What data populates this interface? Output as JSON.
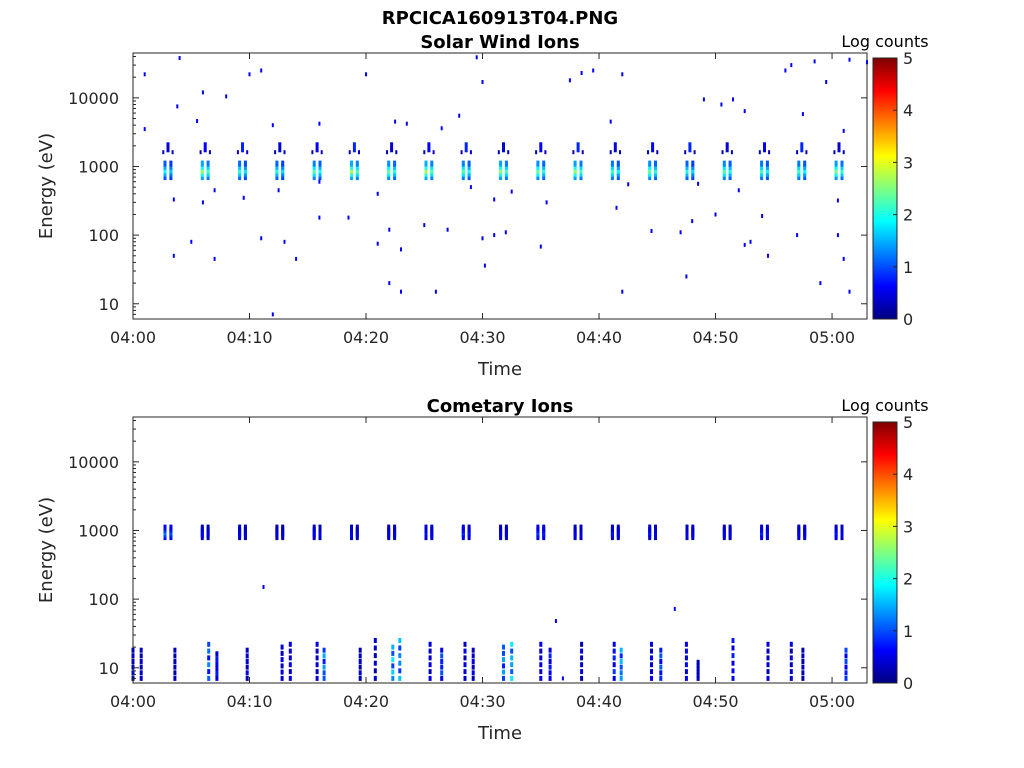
{
  "figure_title": "RPCICA160913T04.PNG",
  "chart_data": [
    {
      "type": "heatmap",
      "title": "Solar Wind Ions",
      "xlabel": "Time",
      "ylabel": "Energy (eV)",
      "x_ticks": [
        "04:00",
        "04:10",
        "04:20",
        "04:30",
        "04:40",
        "04:50",
        "05:00"
      ],
      "xlim_minutes": [
        0,
        63
      ],
      "y_ticks": [
        "10",
        "100",
        "1000",
        "10000"
      ],
      "yscale": "log",
      "ylim": [
        6,
        45000
      ],
      "colorbar": {
        "label": "Log counts",
        "ticks": [
          "0",
          "1",
          "2",
          "3",
          "4",
          "5"
        ],
        "range": [
          0,
          5
        ],
        "colormap": "jet"
      },
      "bursts": [
        {
          "t": 3.0,
          "peak": 1.9
        },
        {
          "t": 6.2,
          "peak": 2.6
        },
        {
          "t": 9.4,
          "peak": 2.1
        },
        {
          "t": 12.6,
          "peak": 2.0
        },
        {
          "t": 15.8,
          "peak": 2.3
        },
        {
          "t": 19.0,
          "peak": 2.7
        },
        {
          "t": 22.2,
          "peak": 2.4
        },
        {
          "t": 25.4,
          "peak": 2.7
        },
        {
          "t": 28.6,
          "peak": 2.3
        },
        {
          "t": 31.8,
          "peak": 2.6
        },
        {
          "t": 35.0,
          "peak": 2.4
        },
        {
          "t": 38.2,
          "peak": 2.6
        },
        {
          "t": 41.4,
          "peak": 2.2
        },
        {
          "t": 44.6,
          "peak": 2.4
        },
        {
          "t": 47.8,
          "peak": 2.0
        },
        {
          "t": 51.0,
          "peak": 2.3
        },
        {
          "t": 54.2,
          "peak": 2.2
        },
        {
          "t": 57.4,
          "peak": 2.2
        },
        {
          "t": 60.6,
          "peak": 2.5
        }
      ],
      "burst_energy_range_eV": [
        700,
        1100
      ],
      "secondary_energy_eV": 1900,
      "scatter": [
        [
          1,
          22000
        ],
        [
          4,
          38000
        ],
        [
          6,
          12000
        ],
        [
          8,
          10500
        ],
        [
          10,
          22000
        ],
        [
          11,
          25000
        ],
        [
          20,
          22000
        ],
        [
          29.5,
          39000
        ],
        [
          30,
          17000
        ],
        [
          37.5,
          18000
        ],
        [
          38.5,
          23000
        ],
        [
          39.5,
          25000
        ],
        [
          42,
          22000
        ],
        [
          51.5,
          9500
        ],
        [
          56,
          25000
        ],
        [
          56.5,
          30000
        ],
        [
          58.5,
          34000
        ],
        [
          59.5,
          17000
        ],
        [
          61.5,
          36000
        ],
        [
          63,
          33000
        ],
        [
          1,
          3500
        ],
        [
          3.8,
          7500
        ],
        [
          5.5,
          4600
        ],
        [
          12,
          4000
        ],
        [
          16,
          4200
        ],
        [
          22.5,
          4500
        ],
        [
          23.5,
          4200
        ],
        [
          26.5,
          3600
        ],
        [
          28,
          5500
        ],
        [
          41,
          4500
        ],
        [
          49,
          9500
        ],
        [
          50.5,
          8000
        ],
        [
          52.5,
          6400
        ],
        [
          57.5,
          5800
        ],
        [
          61,
          3300
        ],
        [
          3.5,
          330
        ],
        [
          6,
          300
        ],
        [
          7,
          450
        ],
        [
          9.5,
          350
        ],
        [
          12.5,
          450
        ],
        [
          16,
          600
        ],
        [
          21,
          400
        ],
        [
          29,
          500
        ],
        [
          31,
          330
        ],
        [
          32.5,
          430
        ],
        [
          35.5,
          300
        ],
        [
          41.5,
          250
        ],
        [
          42.5,
          550
        ],
        [
          48.5,
          560
        ],
        [
          50,
          200
        ],
        [
          52,
          450
        ],
        [
          54,
          190
        ],
        [
          60.5,
          320
        ],
        [
          16,
          180
        ],
        [
          18.5,
          180
        ],
        [
          22,
          120
        ],
        [
          25,
          140
        ],
        [
          27,
          120
        ],
        [
          31,
          100
        ],
        [
          32,
          110
        ],
        [
          44.5,
          115
        ],
        [
          47,
          110
        ],
        [
          48,
          160
        ],
        [
          53,
          80
        ],
        [
          57,
          100
        ],
        [
          60.5,
          100
        ],
        [
          3.5,
          50
        ],
        [
          5,
          80
        ],
        [
          7,
          45
        ],
        [
          11,
          90
        ],
        [
          13,
          80
        ],
        [
          14,
          45
        ],
        [
          21,
          75
        ],
        [
          23,
          62
        ],
        [
          30,
          90
        ],
        [
          35,
          68
        ],
        [
          52.5,
          72
        ],
        [
          54.5,
          50
        ],
        [
          61,
          45
        ],
        [
          12,
          7
        ],
        [
          30.2,
          36
        ],
        [
          22,
          20
        ],
        [
          23,
          15
        ],
        [
          26,
          15
        ],
        [
          42,
          15
        ],
        [
          47.5,
          25
        ],
        [
          59,
          20
        ],
        [
          61.5,
          15
        ]
      ]
    },
    {
      "type": "heatmap",
      "title": "Cometary Ions",
      "xlabel": "Time",
      "ylabel": "Energy (eV)",
      "x_ticks": [
        "04:00",
        "04:10",
        "04:20",
        "04:30",
        "04:40",
        "04:50",
        "05:00"
      ],
      "xlim_minutes": [
        0,
        63
      ],
      "y_ticks": [
        "10",
        "100",
        "1000",
        "10000"
      ],
      "yscale": "log",
      "ylim": [
        6,
        45000
      ],
      "colorbar": {
        "label": "Log counts",
        "ticks": [
          "0",
          "1",
          "2",
          "3",
          "4",
          "5"
        ],
        "range": [
          0,
          5
        ],
        "colormap": "jet"
      },
      "bursts": [
        {
          "t": 3.0,
          "peak": 1.2
        },
        {
          "t": 6.2,
          "peak": 0.6
        },
        {
          "t": 9.4,
          "peak": 0.6
        },
        {
          "t": 12.6,
          "peak": 0.5
        },
        {
          "t": 15.8,
          "peak": 0.6
        },
        {
          "t": 19.0,
          "peak": 0.6
        },
        {
          "t": 22.2,
          "peak": 0.6
        },
        {
          "t": 25.4,
          "peak": 0.7
        },
        {
          "t": 28.6,
          "peak": 0.8
        },
        {
          "t": 31.8,
          "peak": 0.6
        },
        {
          "t": 35.0,
          "peak": 0.9
        },
        {
          "t": 38.2,
          "peak": 0.6
        },
        {
          "t": 41.4,
          "peak": 0.7
        },
        {
          "t": 44.6,
          "peak": 0.7
        },
        {
          "t": 47.8,
          "peak": 0.6
        },
        {
          "t": 51.0,
          "peak": 0.6
        },
        {
          "t": 54.2,
          "peak": 0.8
        },
        {
          "t": 57.4,
          "peak": 0.6
        },
        {
          "t": 60.6,
          "peak": 0.7
        }
      ],
      "burst_energy_range_eV": [
        800,
        1100
      ],
      "low_energy_columns": [
        {
          "t": 0.0,
          "top": 18,
          "peak": 0.4
        },
        {
          "t": 0.7,
          "top": 18,
          "peak": 0.4
        },
        {
          "t": 3.6,
          "top": 18,
          "peak": 0.3
        },
        {
          "t": 6.5,
          "top": 22,
          "peak": 1.3
        },
        {
          "t": 7.2,
          "top": 16,
          "peak": 0.8
        },
        {
          "t": 9.8,
          "top": 18,
          "peak": 0.5
        },
        {
          "t": 12.8,
          "top": 20,
          "peak": 0.5
        },
        {
          "t": 13.5,
          "top": 22,
          "peak": 0.6
        },
        {
          "t": 15.8,
          "top": 22,
          "peak": 0.5
        },
        {
          "t": 16.4,
          "top": 18,
          "peak": 1.5
        },
        {
          "t": 19.5,
          "top": 18,
          "peak": 0.4
        },
        {
          "t": 20.8,
          "top": 25,
          "peak": 0.4
        },
        {
          "t": 22.3,
          "top": 20,
          "peak": 1.8
        },
        {
          "t": 22.9,
          "top": 25,
          "peak": 1.6
        },
        {
          "t": 25.5,
          "top": 22,
          "peak": 0.5
        },
        {
          "t": 26.5,
          "top": 18,
          "peak": 1.1
        },
        {
          "t": 28.5,
          "top": 22,
          "peak": 0.5
        },
        {
          "t": 29.2,
          "top": 18,
          "peak": 0.5
        },
        {
          "t": 31.8,
          "top": 20,
          "peak": 1.5
        },
        {
          "t": 32.5,
          "top": 22,
          "peak": 1.8
        },
        {
          "t": 35.0,
          "top": 22,
          "peak": 0.6
        },
        {
          "t": 35.8,
          "top": 18,
          "peak": 0.8
        },
        {
          "t": 38.5,
          "top": 22,
          "peak": 0.5
        },
        {
          "t": 41.3,
          "top": 22,
          "peak": 0.9
        },
        {
          "t": 41.9,
          "top": 18,
          "peak": 1.6
        },
        {
          "t": 44.5,
          "top": 22,
          "peak": 0.6
        },
        {
          "t": 45.3,
          "top": 18,
          "peak": 1.1
        },
        {
          "t": 47.5,
          "top": 22,
          "peak": 0.6
        },
        {
          "t": 48.5,
          "top": 12,
          "peak": 0.4
        },
        {
          "t": 51.5,
          "top": 25,
          "peak": 0.8
        },
        {
          "t": 54.5,
          "top": 22,
          "peak": 0.5
        },
        {
          "t": 56.5,
          "top": 22,
          "peak": 0.5
        },
        {
          "t": 57.5,
          "top": 18,
          "peak": 0.4
        },
        {
          "t": 61.2,
          "top": 18,
          "peak": 1.0
        }
      ],
      "scatter": [
        [
          11.2,
          150
        ],
        [
          36.3,
          48
        ],
        [
          46.5,
          72
        ],
        [
          36.9,
          7
        ]
      ]
    }
  ]
}
